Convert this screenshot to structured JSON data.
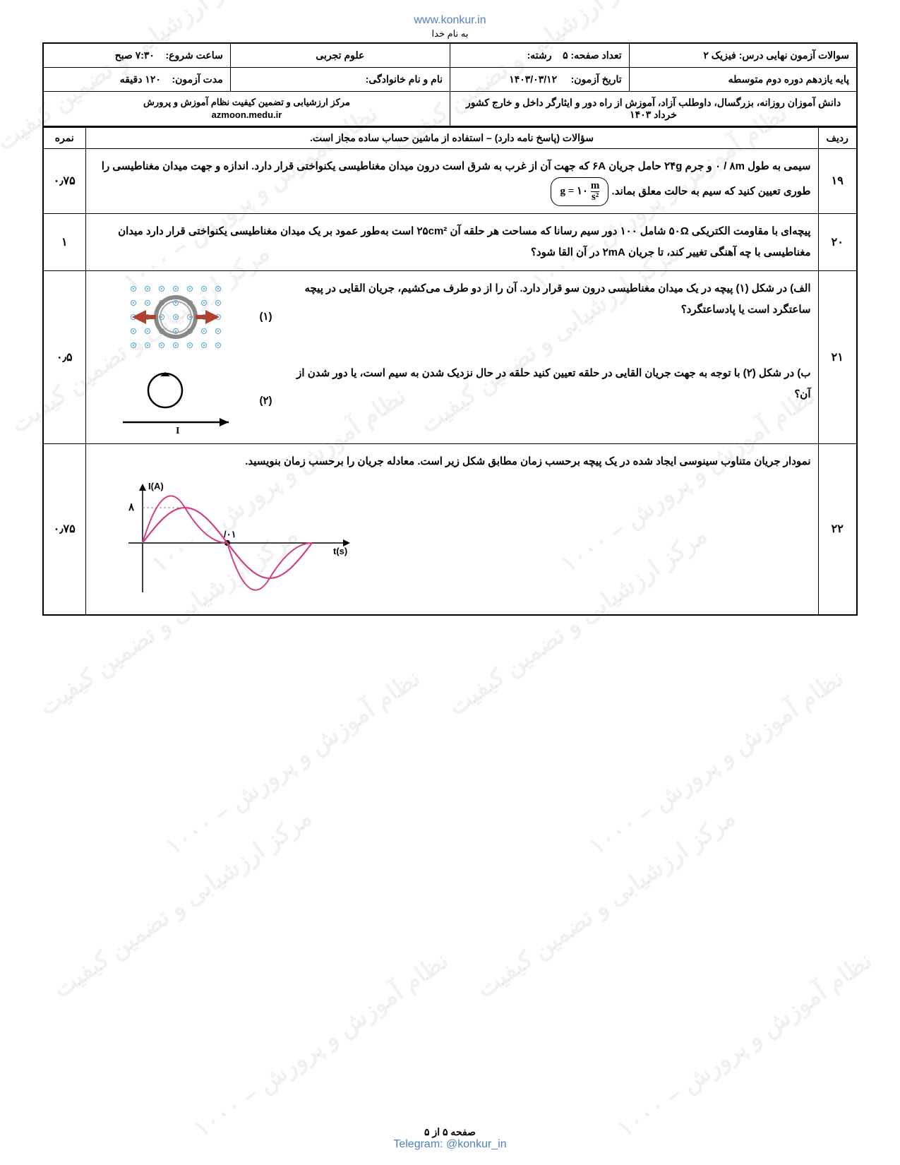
{
  "url_top": "www.konkur.in",
  "basmala": "به نام خدا",
  "header": {
    "row1": {
      "c1_label": "سوالات آزمون نهایی درس:",
      "c1_value": "فیزیک ۲",
      "c2_label": "تعداد صفحه:",
      "c2_value": "۵",
      "c3_label": "رشته:",
      "c3_value": "علوم تجربی",
      "c4_label": "ساعت شروع:",
      "c4_value": "۷:۳۰ صبح"
    },
    "row2": {
      "c1": "پایه یازدهم دوره دوم متوسطه",
      "c2_label": "تاریخ آزمون:",
      "c2_value": "۱۴۰۳/۰۳/۱۲",
      "c3_label": "نام و نام خانوادگی:",
      "c4_label": "مدت آزمون:",
      "c4_value": "۱۲۰ دقیقه"
    },
    "row3": {
      "right": "دانش آموزان روزانه، بزرگسال، داوطلب آزاد، آموزش از راه دور و ایثارگر داخل و خارج کشور خرداد ۱۴۰۳",
      "left_line1": "مرکز ارزشیابی و تضمین کیفیت نظام آموزش و پرورش",
      "left_line2": "azmoon.medu.ir"
    }
  },
  "cols": {
    "num_header": "ردیف",
    "q_header": "سؤالات (پاسخ نامه دارد) – استفاده از ماشین حساب ساده مجاز است.",
    "score_header": "نمره"
  },
  "q19": {
    "num": "۱۹",
    "score": "۰٫۷۵",
    "text_a": "سیمی به طول ",
    "v_len": "۰ / ۸m",
    "text_b": " و جرم ",
    "v_mass": "۲۴g",
    "text_c": " حامل جریان ",
    "v_cur": "۶A",
    "text_d": " که جهت آن از غرب به شرق است درون میدان مغناطیسی یکنواختی قرار دارد. اندازه و جهت میدان مغناطیسی را طوری تعیین کنید که سیم به حالت معلق بماند. ",
    "formula": "g = ۱۰ m/s²"
  },
  "q20": {
    "num": "۲۰",
    "score": "۱",
    "text_a": "پیچه‌ای با مقاومت الکتریکی ",
    "v_r": "۵۰Ω",
    "text_b": " شامل ۱۰۰ دور سیم رسانا که مساحت هر حلقه آن ",
    "v_a": "۲۵cm²",
    "text_c": " است به‌طور عمود بر یک میدان مغناطیسی یکنواختی قرار دارد میدان مغناطیسی با چه آهنگی تغییر کند، تا جریان ",
    "v_i": "۲mA",
    "text_d": " در آن القا شود؟"
  },
  "q21": {
    "num": "۲۱",
    "score": "۰٫۵",
    "part_a": "الف) در شکل (۱) پیچه در یک میدان مغناطیسی درون سو قرار دارد. آن را از دو طرف می‌کشیم، جریان القایی در پیچه ساعتگرد است یا پادساعتگرد؟",
    "part_b": "ب) در شکل (۲) با توجه به جهت جریان القایی در حلقه تعیین کنید حلقه در حال نزدیک شدن به سیم است، یا دور شدن از آن؟",
    "label1": "(۱)",
    "label2": "(۲)",
    "fig_colors": {
      "dot_color": "#4aa0d0",
      "coil_color": "#888888",
      "arrow_color": "#b04030",
      "line_color": "#000000"
    }
  },
  "q22": {
    "num": "۲۲",
    "score": "۰٫۷۵",
    "text": "نمودار جریان متناوب سینوسی ایجاد شده در یک پیچه برحسب زمان مطابق شکل زیر است. معادله جریان را برحسب زمان بنویسید.",
    "graph": {
      "y_axis_label": "I(A)",
      "x_axis_label": "t(s)",
      "y_tick": "۸",
      "x_tick": "۰/۰۱",
      "amplitude": 8,
      "period": 0.02,
      "curve_color": "#d04080",
      "axis_color": "#000000",
      "guide_color": "#888888"
    }
  },
  "footer": {
    "page": "صفحه ۵ از ۵",
    "telegram": "Telegram: @konkur_in"
  },
  "watermark_text": "مرکز ارزشیابی و تضمین کیفیت نظام آموزش و پرورش"
}
